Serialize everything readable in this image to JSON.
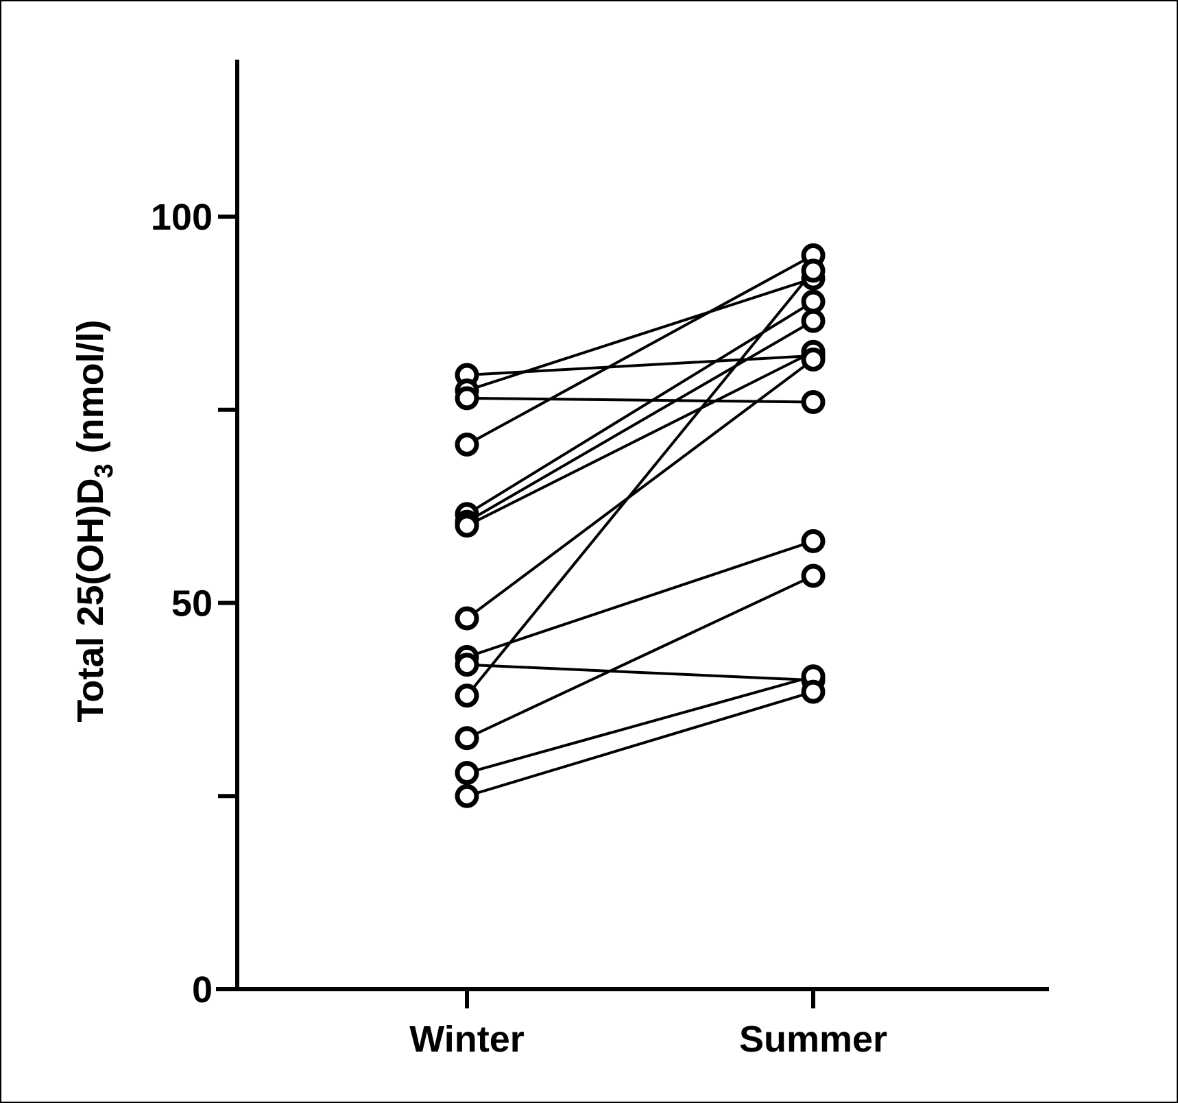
{
  "chart_data": {
    "type": "line",
    "categories": [
      "Winter",
      "Summer"
    ],
    "ylabel": {
      "main": "Total 25(OH)D",
      "sub": "3",
      "unit": " (nmol/l)"
    },
    "ylim": [
      0,
      120
    ],
    "yticks": [
      0,
      25,
      50,
      75,
      100
    ],
    "ytick_labels": [
      "0",
      "",
      "50",
      "",
      "100"
    ],
    "series": [
      {
        "values": [
          79.5,
          82.0
        ]
      },
      {
        "values": [
          77.5,
          92.0
        ]
      },
      {
        "values": [
          76.5,
          76.0
        ]
      },
      {
        "values": [
          70.5,
          95.0
        ]
      },
      {
        "values": [
          61.5,
          89.0
        ]
      },
      {
        "values": [
          60.5,
          86.5
        ]
      },
      {
        "values": [
          60.0,
          82.5
        ]
      },
      {
        "values": [
          48.0,
          81.5
        ]
      },
      {
        "values": [
          43.0,
          58.0
        ]
      },
      {
        "values": [
          42.0,
          40.0
        ]
      },
      {
        "values": [
          38.0,
          93.0
        ]
      },
      {
        "values": [
          32.5,
          53.5
        ]
      },
      {
        "values": [
          28.0,
          40.5
        ]
      },
      {
        "values": [
          25.0,
          38.5
        ]
      }
    ],
    "grid": false,
    "legend": "none",
    "marker": "open-circle",
    "colors": {
      "line": "#000000",
      "marker_fill": "#ffffff",
      "frame": "#000000"
    }
  }
}
